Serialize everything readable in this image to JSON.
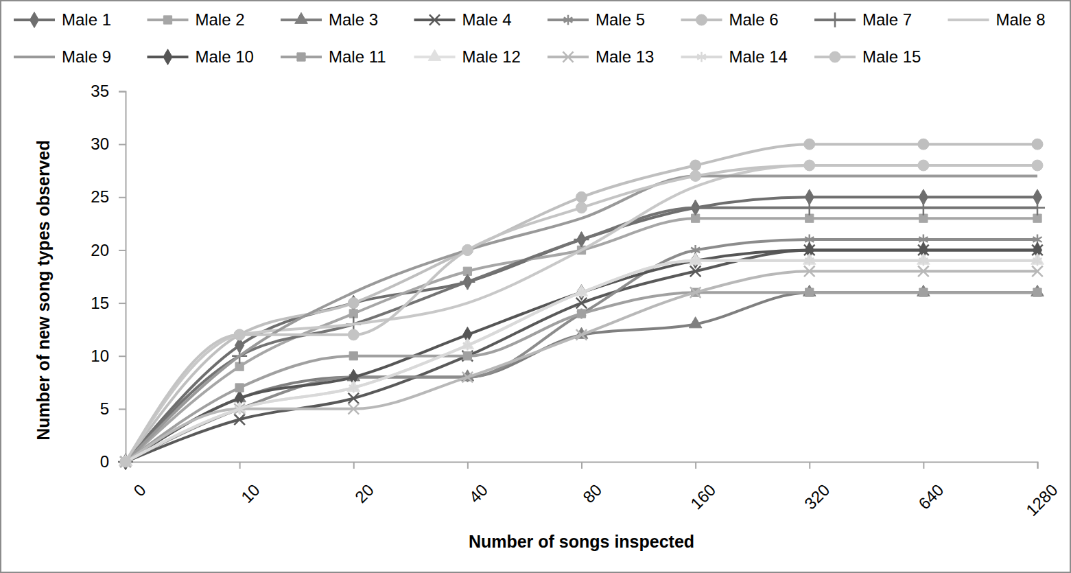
{
  "chart_data": {
    "type": "line",
    "x_label": "Number of songs inspected",
    "y_label": "Number of new song types observed",
    "categories": [
      "0",
      "10",
      "20",
      "40",
      "80",
      "160",
      "320",
      "640",
      "1280"
    ],
    "ylim": [
      0,
      35
    ],
    "yticks": [
      0,
      5,
      10,
      15,
      20,
      25,
      30,
      35
    ],
    "grid": false,
    "legend": "top",
    "series": [
      {
        "name": "Male 1",
        "color": "#6e6e6e",
        "marker": "diamond",
        "values": [
          0,
          11,
          15,
          17,
          21,
          24,
          25,
          25,
          25
        ]
      },
      {
        "name": "Male 2",
        "color": "#a6a6a6",
        "marker": "square",
        "values": [
          0,
          9,
          14,
          18,
          20,
          23,
          23,
          23,
          23
        ]
      },
      {
        "name": "Male 3",
        "color": "#7f7f7f",
        "marker": "triangle",
        "values": [
          0,
          6,
          8,
          8,
          12,
          13,
          16,
          16,
          16
        ]
      },
      {
        "name": "Male 4",
        "color": "#595959",
        "marker": "x",
        "values": [
          0,
          4,
          6,
          10,
          15,
          18,
          20,
          20,
          20
        ]
      },
      {
        "name": "Male 5",
        "color": "#8c8c8c",
        "marker": "asterisk",
        "values": [
          0,
          5,
          8,
          8,
          14,
          20,
          21,
          21,
          21
        ]
      },
      {
        "name": "Male 6",
        "color": "#bfbfbf",
        "marker": "circle",
        "values": [
          0,
          12,
          15,
          20,
          25,
          28,
          30,
          30,
          30
        ]
      },
      {
        "name": "Male 7",
        "color": "#737373",
        "marker": "plus",
        "values": [
          0,
          10,
          13,
          17,
          21,
          24,
          24,
          24,
          24
        ]
      },
      {
        "name": "Male 8",
        "color": "#c8c8c8",
        "marker": "none",
        "values": [
          0,
          12,
          13,
          15,
          20,
          26,
          28,
          28,
          28
        ]
      },
      {
        "name": "Male 9",
        "color": "#999999",
        "marker": "none",
        "values": [
          0,
          10,
          16,
          20,
          23,
          27,
          27,
          27,
          27
        ]
      },
      {
        "name": "Male 10",
        "color": "#555555",
        "marker": "diamond",
        "values": [
          0,
          6,
          8,
          12,
          16,
          19,
          20,
          20,
          20
        ]
      },
      {
        "name": "Male 11",
        "color": "#a0a0a0",
        "marker": "square",
        "values": [
          0,
          7,
          10,
          10,
          14,
          16,
          16,
          16,
          16
        ]
      },
      {
        "name": "Male 12",
        "color": "#e0e0e0",
        "marker": "triangle",
        "values": [
          0,
          5,
          7,
          11,
          16,
          19,
          19,
          19,
          19
        ]
      },
      {
        "name": "Male 13",
        "color": "#b8b8b8",
        "marker": "x",
        "values": [
          0,
          5,
          5,
          8,
          12,
          16,
          18,
          18,
          18
        ]
      },
      {
        "name": "Male 14",
        "color": "#d9d9d9",
        "marker": "asterisk",
        "values": [
          0,
          5,
          7,
          11,
          16,
          19,
          19,
          19,
          19
        ]
      },
      {
        "name": "Male 15",
        "color": "#c4c4c4",
        "marker": "circle",
        "values": [
          0,
          12,
          12,
          20,
          24,
          27,
          28,
          28,
          28
        ]
      }
    ]
  }
}
